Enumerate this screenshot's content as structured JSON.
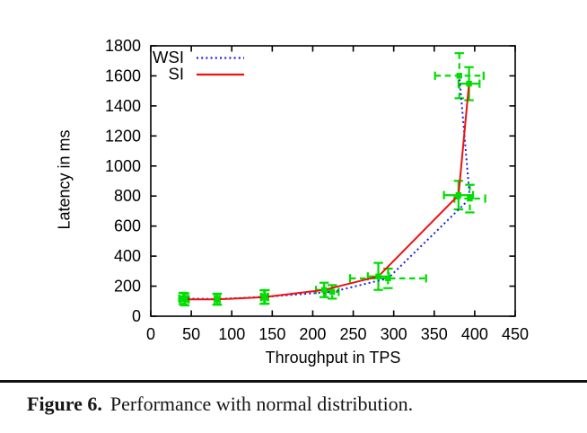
{
  "figure": {
    "caption_label": "Figure 6.",
    "caption_text": "Performance with normal distribution."
  },
  "chart_data": {
    "type": "line",
    "title": "",
    "xlabel": "Throughput in TPS",
    "ylabel": "Latency in ms",
    "xlim": [
      0,
      450
    ],
    "ylim": [
      0,
      1800
    ],
    "xticks": [
      0,
      50,
      100,
      150,
      200,
      250,
      300,
      350,
      400,
      450
    ],
    "yticks": [
      0,
      200,
      400,
      600,
      800,
      1000,
      1200,
      1400,
      1600,
      1800
    ],
    "grid": false,
    "legend_position": "top-left-inside",
    "axis_color": "#000000",
    "errorbar_color": "#00dd00",
    "series": [
      {
        "name": "WSI",
        "color": "#2020e0",
        "line_style": "dotted",
        "errorbar_style": "dashed",
        "points": [
          {
            "x": 40,
            "y": 118,
            "xerr": 5,
            "yerr": 38
          },
          {
            "x": 82,
            "y": 114,
            "xerr": 3,
            "yerr": 36
          },
          {
            "x": 141,
            "y": 129,
            "xerr": 4,
            "yerr": 45
          },
          {
            "x": 224,
            "y": 162,
            "xerr": 8,
            "yerr": 45
          },
          {
            "x": 293,
            "y": 252,
            "xerr": 47,
            "yerr": 65
          },
          {
            "x": 394,
            "y": 783,
            "xerr": 19,
            "yerr": 92
          },
          {
            "x": 381,
            "y": 1601,
            "xerr": 30,
            "yerr": 150
          }
        ]
      },
      {
        "name": "SI",
        "color": "#ee1111",
        "line_style": "solid",
        "errorbar_style": "solid",
        "points": [
          {
            "x": 42,
            "y": 112,
            "xerr": 5,
            "yerr": 40
          },
          {
            "x": 82,
            "y": 112,
            "xerr": 3,
            "yerr": 36
          },
          {
            "x": 140,
            "y": 127,
            "xerr": 4,
            "yerr": 45
          },
          {
            "x": 214,
            "y": 175,
            "xerr": 10,
            "yerr": 48
          },
          {
            "x": 281,
            "y": 265,
            "xerr": 13,
            "yerr": 90
          },
          {
            "x": 380,
            "y": 806,
            "xerr": 18,
            "yerr": 95
          },
          {
            "x": 393,
            "y": 1548,
            "xerr": 13,
            "yerr": 110
          }
        ]
      }
    ]
  }
}
